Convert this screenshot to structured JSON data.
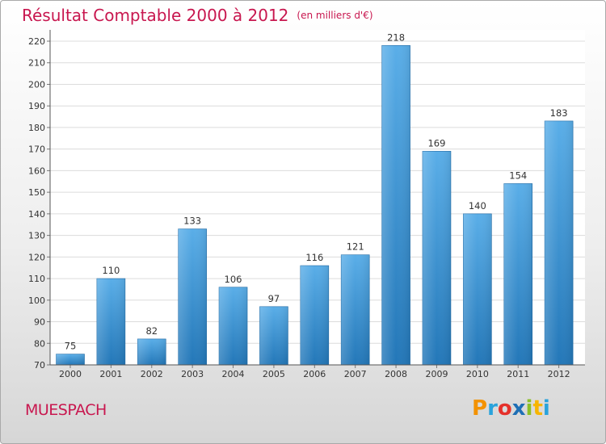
{
  "header": {
    "title": "Résultat Comptable 2000 à 2012",
    "subtitle": "(en milliers d'€)"
  },
  "footer": {
    "commune": "MUESPACH",
    "logo": "Proxiti"
  },
  "colors": {
    "accent": "#c8174f",
    "bar_top": "#5aaee8",
    "bar_bottom": "#2377b8"
  },
  "chart_data": {
    "type": "bar",
    "title": "Résultat Comptable 2000 à 2012",
    "subtitle": "(en milliers d'€)",
    "xlabel": "",
    "ylabel": "",
    "categories": [
      "2000",
      "2001",
      "2002",
      "2003",
      "2004",
      "2005",
      "2006",
      "2007",
      "2008",
      "2009",
      "2010",
      "2011",
      "2012"
    ],
    "values": [
      75,
      110,
      82,
      133,
      106,
      97,
      116,
      121,
      218,
      169,
      140,
      154,
      183
    ],
    "ylim": [
      70,
      220
    ],
    "yticks": [
      70,
      80,
      90,
      100,
      110,
      120,
      130,
      140,
      150,
      160,
      170,
      180,
      190,
      200,
      210,
      220
    ],
    "grid": true
  }
}
